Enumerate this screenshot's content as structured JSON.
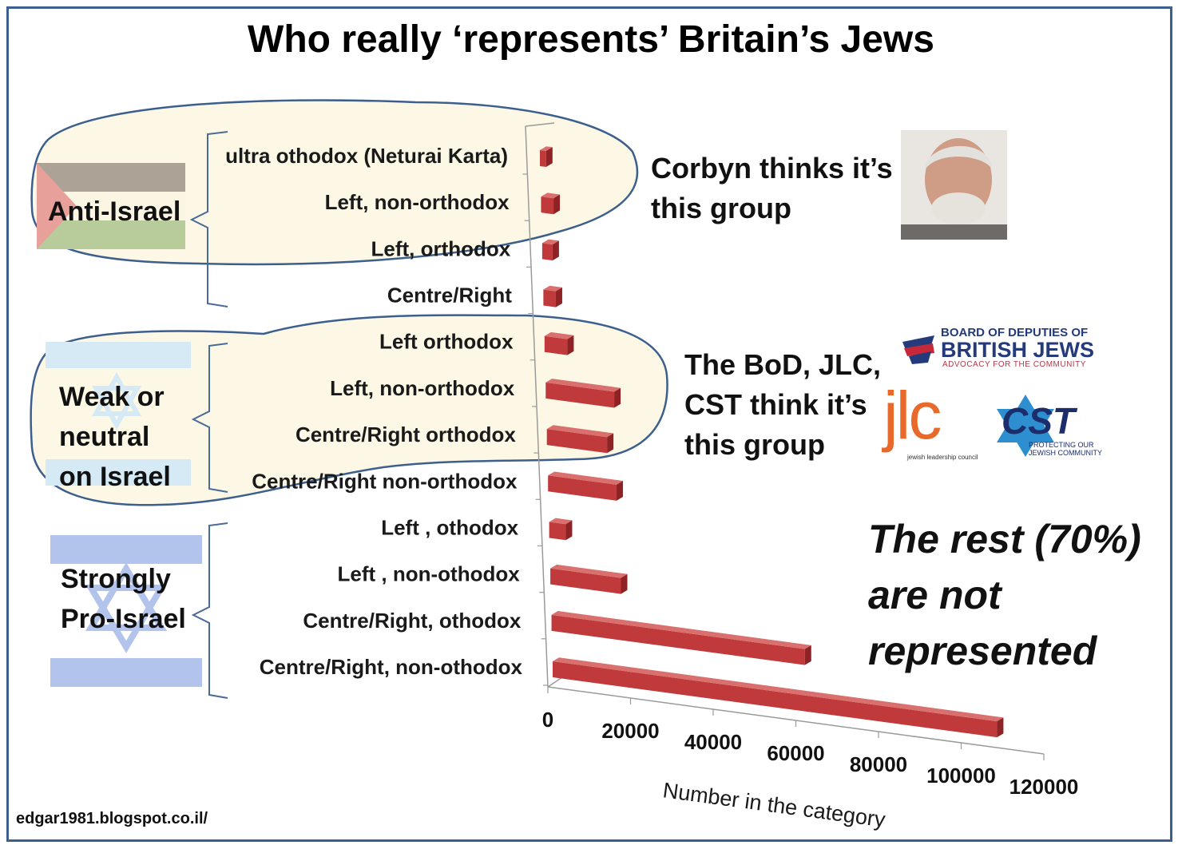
{
  "title": "Who really ‘represents’ Britain’s Jews",
  "footer": "edgar1981.blogspot.co.il/",
  "groups": {
    "anti": "Anti-Israel",
    "weak_l1": "Weak or",
    "weak_l2": "neutral",
    "weak_l3": "on Israel",
    "strong_l1": "Strongly",
    "strong_l2": "Pro-Israel"
  },
  "annotations": {
    "corbyn_l1": "Corbyn thinks it’s",
    "corbyn_l2": "this group",
    "bod_l1": "The BoD, JLC,",
    "bod_l2": "CST  think  it’s",
    "bod_l3": "this group",
    "rest_l1": "The rest (70%)",
    "rest_l2": "are not",
    "rest_l3": "represented"
  },
  "logos": {
    "bod_line1": "BOARD OF DEPUTIES OF",
    "bod_line2": "BRITISH JEWS",
    "bod_line3": "ADVOCACY FOR THE COMMUNITY",
    "jlc": "jlc",
    "jlc_sub": "jewish leadership council",
    "cst": "CST",
    "cst_sub1": "PROTECTING OUR",
    "cst_sub2": "JEWISH COMMUNITY"
  },
  "colors": {
    "bar_front": "#c0393b",
    "bar_top": "#d9706e",
    "bar_side": "#8e2224",
    "bubble_fill": "#fdf8e6",
    "bubble_stroke": "#3d5f8e",
    "brace": "#4a6a9a"
  },
  "chart_data": {
    "type": "bar",
    "orientation": "horizontal",
    "title": "",
    "xlabel": "Number in the category",
    "ylabel": "",
    "xlim": [
      0,
      120000
    ],
    "xticks": [
      "0",
      "20000",
      "40000",
      "60000",
      "80000",
      "100000",
      "120000"
    ],
    "grid": false,
    "categories": [
      "ultra othodox (Neturai Karta)",
      "Left, non-orthodox",
      "Left, orthodox",
      "Centre/Right",
      "Left orthodox",
      "Left, non-orthodox",
      "Centre/Right orthodox",
      "Centre/Right non-orthodox",
      "Left , othodox",
      "Left , non-othodox",
      "Centre/Right, othodox",
      "Centre/Right, non-othodox"
    ],
    "values": [
      1500,
      3000,
      2500,
      3000,
      5500,
      16500,
      14500,
      16500,
      4000,
      17000,
      61000,
      107000
    ]
  }
}
